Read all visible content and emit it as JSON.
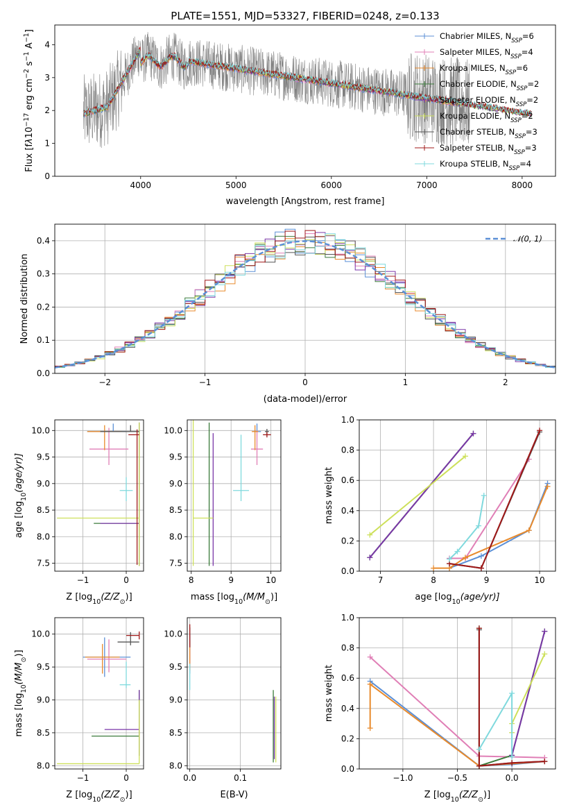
{
  "figure": {
    "title": "PLATE=1551, MJD=53327, FIBERID=0248, z=0.133"
  },
  "chart_data": [
    {
      "id": "spectrum",
      "type": "line",
      "xlabel": "wavelength [Angstrom, rest frame]",
      "ylabel_parts": [
        "Flux [f",
        "λ",
        "10",
        "−17",
        " erg cm",
        "−2",
        " s",
        "−1",
        " A",
        "−1",
        "]"
      ],
      "xlim": [
        3100,
        8350
      ],
      "ylim": [
        0,
        4.6
      ],
      "xticks": [
        4000,
        5000,
        6000,
        7000,
        8000
      ],
      "yticks": [
        0,
        1,
        2,
        3,
        4
      ],
      "grid": false,
      "legend": "top-right",
      "legend_entries": [
        {
          "base": "Chabrier MILES, N",
          "sub": "SSP",
          "tail": "=6",
          "color": "#5b8fd6"
        },
        {
          "base": "Salpeter MILES, N",
          "sub": "SSP",
          "tail": "=4",
          "color": "#e07fb6"
        },
        {
          "base": "Kroupa MILES, N",
          "sub": "SSP",
          "tail": "=6",
          "color": "#e88a2c"
        },
        {
          "base": "Chabrier ELODIE, N",
          "sub": "SSP",
          "tail": "=2",
          "color": "#3a7a3a"
        },
        {
          "base": "Salpeter ELODIE, N",
          "sub": "SSP",
          "tail": "=2",
          "color": "#7a36a8"
        },
        {
          "base": "Kroupa ELODIE, N",
          "sub": "SSP",
          "tail": "=2",
          "color": "#cde05a"
        },
        {
          "base": "Chabrier STELIB, N",
          "sub": "SSP",
          "tail": "=3",
          "color": "#555555"
        },
        {
          "base": "Salpeter STELIB, N",
          "sub": "SSP",
          "tail": "=3",
          "color": "#a01818"
        },
        {
          "base": "Kroupa STELIB, N",
          "sub": "SSP",
          "tail": "=4",
          "color": "#7fd9dd"
        }
      ],
      "data_series_color": "#808080"
    },
    {
      "id": "residuals",
      "type": "histogram",
      "xlabel": "(data-model)/error",
      "ylabel": "Normed distribution",
      "xlim": [
        -2.5,
        2.5
      ],
      "ylim": [
        0,
        0.45
      ],
      "xticks": [
        -2,
        -1,
        0,
        1,
        2
      ],
      "yticks": [
        0.0,
        0.1,
        0.2,
        0.3,
        0.4
      ],
      "grid": true,
      "legend": "top-right",
      "legend_label": "𝒩(0, 1)",
      "gauss_color": "#5b8fd6"
    },
    {
      "id": "age-vs-Z",
      "type": "errorbar",
      "xlabel_parts": [
        "Z [log",
        "10",
        "(Z/Z",
        "⊙",
        ")]"
      ],
      "ylabel_parts": [
        "age  [log",
        "10",
        "(age/yr)]"
      ],
      "xlim": [
        -1.65,
        0.4
      ],
      "ylim": [
        7.35,
        10.2
      ],
      "xticks": [
        -1,
        0
      ],
      "yticks": [
        7.5,
        8.0,
        8.5,
        9.0,
        9.5,
        10.0
      ],
      "grid": true,
      "points": [
        {
          "x": -0.3,
          "y": 9.98,
          "xerr": [
            0.6,
            0.3
          ],
          "yerr": [
            0.0,
            0.15
          ],
          "s": 0
        },
        {
          "x": -0.4,
          "y": 9.65,
          "xerr": [
            0.45,
            0.45
          ],
          "yerr": [
            0.3,
            0.4
          ],
          "s": 1
        },
        {
          "x": -0.5,
          "y": 9.98,
          "xerr": [
            0.4,
            0.4
          ],
          "yerr": [
            0.35,
            0.12
          ],
          "s": 2
        },
        {
          "x": 0.3,
          "y": 8.25,
          "xerr": [
            1.05,
            0.0
          ],
          "yerr": [
            0.8,
            1.9
          ],
          "s": 3
        },
        {
          "x": 0.3,
          "y": 8.25,
          "xerr": [
            0.9,
            0.0
          ],
          "yerr": [
            0.8,
            1.9
          ],
          "s": 4
        },
        {
          "x": 0.3,
          "y": 8.35,
          "xerr": [
            1.9,
            0.0
          ],
          "yerr": [
            0.9,
            1.8
          ],
          "s": 5
        },
        {
          "x": 0.1,
          "y": 9.98,
          "xerr": [
            0.7,
            0.2
          ],
          "yerr": [
            0.0,
            0.12
          ],
          "s": 6
        },
        {
          "x": 0.25,
          "y": 9.92,
          "xerr": [
            0.2,
            0.05
          ],
          "yerr": [
            2.45,
            0.1
          ],
          "s": 7
        },
        {
          "x": 0.0,
          "y": 8.87,
          "xerr": [
            0.15,
            0.15
          ],
          "yerr": [
            0.2,
            0.25
          ],
          "s": 8
        }
      ]
    },
    {
      "id": "age-vs-mass",
      "type": "errorbar",
      "xlabel_parts": [
        "mass [log",
        "10",
        "(M/M",
        "⊙",
        ")]"
      ],
      "ylabel": "",
      "xlim": [
        7.9,
        10.25
      ],
      "ylim": [
        7.35,
        10.2
      ],
      "xticks": [
        8,
        9,
        10
      ],
      "yticks": [
        7.5,
        8.0,
        8.5,
        9.0,
        9.5,
        10.0
      ],
      "grid": true,
      "points": [
        {
          "x": 9.65,
          "y": 9.98,
          "xerr": [
            0.1,
            0.1
          ],
          "yerr": [
            0.0,
            0.15
          ],
          "s": 0
        },
        {
          "x": 9.65,
          "y": 9.65,
          "xerr": [
            0.15,
            0.15
          ],
          "yerr": [
            0.3,
            0.35
          ],
          "s": 1
        },
        {
          "x": 9.6,
          "y": 9.98,
          "xerr": [
            0.08,
            0.08
          ],
          "yerr": [
            0.35,
            0.12
          ],
          "s": 2
        },
        {
          "x": 8.45,
          "y": 8.25,
          "xerr": [
            0.0,
            0.0
          ],
          "yerr": [
            0.8,
            1.9
          ],
          "s": 3
        },
        {
          "x": 8.55,
          "y": 8.25,
          "xerr": [
            0.0,
            0.0
          ],
          "yerr": [
            0.8,
            1.7
          ],
          "s": 4
        },
        {
          "x": 8.05,
          "y": 8.35,
          "xerr": [
            0.0,
            0.5
          ],
          "yerr": [
            0.9,
            1.85
          ],
          "s": 5
        },
        {
          "x": 9.9,
          "y": 9.98,
          "xerr": [
            0.05,
            0.05
          ],
          "yerr": [
            0.08,
            0.05
          ],
          "s": 6
        },
        {
          "x": 9.9,
          "y": 9.92,
          "xerr": [
            0.1,
            0.1
          ],
          "yerr": [
            0.05,
            0.05
          ],
          "s": 7
        },
        {
          "x": 9.25,
          "y": 8.87,
          "xerr": [
            0.2,
            0.2
          ],
          "yerr": [
            0.2,
            1.05
          ],
          "s": 8
        }
      ]
    },
    {
      "id": "mass-weight-vs-age",
      "type": "line",
      "xlabel_parts": [
        "age  [log",
        "10",
        "(age/yr)]"
      ],
      "ylabel": "mass weight",
      "xlim": [
        6.6,
        10.3
      ],
      "ylim": [
        0,
        1.0
      ],
      "xticks": [
        7,
        8,
        9,
        10
      ],
      "yticks": [
        0.0,
        0.2,
        0.4,
        0.6,
        0.8,
        1.0
      ],
      "grid": true,
      "series": [
        {
          "s": 0,
          "x": [
            8.3,
            8.9,
            9.8,
            10.15
          ],
          "y": [
            0.02,
            0.1,
            0.27,
            0.58
          ]
        },
        {
          "s": 1,
          "x": [
            8.3,
            8.6,
            9.8
          ],
          "y": [
            0.085,
            0.085,
            0.74
          ]
        },
        {
          "s": 2,
          "x": [
            8.0,
            8.3,
            8.6,
            9.8,
            10.15
          ],
          "y": [
            0.02,
            0.02,
            0.09,
            0.27,
            0.56
          ]
        },
        {
          "s": 3,
          "x": [
            6.8,
            8.75
          ],
          "y": [
            0.09,
            0.91
          ]
        },
        {
          "s": 4,
          "x": [
            6.8,
            8.75
          ],
          "y": [
            0.09,
            0.91
          ]
        },
        {
          "s": 5,
          "x": [
            6.8,
            8.6
          ],
          "y": [
            0.24,
            0.76
          ]
        },
        {
          "s": 6,
          "x": [
            8.3,
            8.9,
            10.0
          ],
          "y": [
            0.05,
            0.02,
            0.92
          ]
        },
        {
          "s": 7,
          "x": [
            8.3,
            8.9,
            10.0
          ],
          "y": [
            0.05,
            0.02,
            0.93
          ]
        },
        {
          "s": 8,
          "x": [
            8.3,
            8.45,
            8.85,
            8.95
          ],
          "y": [
            0.08,
            0.13,
            0.3,
            0.5
          ]
        }
      ]
    },
    {
      "id": "mass-vs-Z",
      "type": "errorbar",
      "xlabel_parts": [
        "Z [log",
        "10",
        "(Z/Z",
        "⊙",
        ")]"
      ],
      "ylabel_parts": [
        "mass [log",
        "10",
        "(M/M",
        "⊙",
        ")]"
      ],
      "xlim": [
        -1.65,
        0.4
      ],
      "ylim": [
        7.95,
        10.25
      ],
      "xticks": [
        -1,
        0
      ],
      "yticks": [
        8.0,
        8.5,
        9.0,
        9.5,
        10.0
      ],
      "grid": true,
      "points": [
        {
          "x": -0.5,
          "y": 9.65,
          "xerr": [
            0.5,
            0.6
          ],
          "yerr": [
            0.3,
            0.3
          ],
          "s": 0
        },
        {
          "x": -0.4,
          "y": 9.62,
          "xerr": [
            0.5,
            0.4
          ],
          "yerr": [
            0.2,
            0.3
          ],
          "s": 1
        },
        {
          "x": -0.55,
          "y": 9.65,
          "xerr": [
            0.4,
            0.4
          ],
          "yerr": [
            0.25,
            0.2
          ],
          "s": 2
        },
        {
          "x": 0.3,
          "y": 8.45,
          "xerr": [
            1.1,
            0.0
          ],
          "yerr": [
            0.3,
            0.7
          ],
          "s": 3
        },
        {
          "x": 0.3,
          "y": 8.55,
          "xerr": [
            0.8,
            0.0
          ],
          "yerr": [
            0.4,
            0.6
          ],
          "s": 4
        },
        {
          "x": 0.3,
          "y": 8.03,
          "xerr": [
            1.9,
            0.0
          ],
          "yerr": [
            0.0,
            0.97
          ],
          "s": 5
        },
        {
          "x": 0.1,
          "y": 9.88,
          "xerr": [
            0.3,
            0.2
          ],
          "yerr": [
            0.05,
            0.15
          ],
          "s": 6
        },
        {
          "x": 0.3,
          "y": 9.98,
          "xerr": [
            0.3,
            0.0
          ],
          "yerr": [
            0.06,
            0.06
          ],
          "s": 7
        },
        {
          "x": 0.0,
          "y": 9.23,
          "xerr": [
            0.15,
            0.1
          ],
          "yerr": [
            0.05,
            0.35
          ],
          "s": 8
        }
      ]
    },
    {
      "id": "mass-vs-ebv",
      "type": "errorbar",
      "xlabel": "E(B-V)",
      "ylabel": "",
      "xlim": [
        -0.005,
        0.18
      ],
      "ylim": [
        7.95,
        10.25
      ],
      "xticks": [
        0.0,
        0.1
      ],
      "yticks": [
        8.0,
        8.5,
        9.0,
        9.5,
        10.0
      ],
      "grid": true,
      "points": [
        {
          "x": 0.0,
          "y": 9.7,
          "xerr": [
            0,
            0
          ],
          "yerr": [
            0.3,
            0.3
          ],
          "s": 0
        },
        {
          "x": 0.0,
          "y": 9.7,
          "xerr": [
            0,
            0
          ],
          "yerr": [
            0.2,
            0.3
          ],
          "s": 1
        },
        {
          "x": 0.0,
          "y": 9.7,
          "xerr": [
            0,
            0
          ],
          "yerr": [
            0.25,
            0.2
          ],
          "s": 2
        },
        {
          "x": 0.165,
          "y": 8.55,
          "xerr": [
            0,
            0
          ],
          "yerr": [
            0.5,
            0.6
          ],
          "s": 3
        },
        {
          "x": 0.167,
          "y": 8.55,
          "xerr": [
            0,
            0
          ],
          "yerr": [
            0.45,
            0.5
          ],
          "s": 4
        },
        {
          "x": 0.17,
          "y": 8.55,
          "xerr": [
            0,
            0
          ],
          "yerr": [
            0.5,
            0.5
          ],
          "s": 5
        },
        {
          "x": 0.0,
          "y": 9.9,
          "xerr": [
            0,
            0
          ],
          "yerr": [
            0.1,
            0.2
          ],
          "s": 6
        },
        {
          "x": 0.0,
          "y": 9.95,
          "xerr": [
            0,
            0
          ],
          "yerr": [
            0.15,
            0.2
          ],
          "s": 7
        },
        {
          "x": 0.0,
          "y": 9.35,
          "xerr": [
            0,
            0
          ],
          "yerr": [
            0.2,
            0.2
          ],
          "s": 8
        }
      ]
    },
    {
      "id": "mass-weight-vs-Z",
      "type": "line",
      "xlabel_parts": [
        "Z [log",
        "10",
        "(Z/Z",
        "⊙",
        ")]"
      ],
      "ylabel": "mass weight",
      "xlim": [
        -1.4,
        0.4
      ],
      "ylim": [
        0,
        1.0
      ],
      "xticks": [
        -1.0,
        -0.5,
        0.0
      ],
      "yticks": [
        0.0,
        0.2,
        0.4,
        0.6,
        0.8,
        1.0
      ],
      "grid": true,
      "series": [
        {
          "s": 0,
          "x": [
            -1.3,
            -0.3,
            0.0,
            0.3
          ],
          "y": [
            0.58,
            0.02,
            0.03,
            0.05
          ]
        },
        {
          "s": 1,
          "x": [
            -1.3,
            -0.3,
            0.3
          ],
          "y": [
            0.74,
            0.085,
            0.075
          ]
        },
        {
          "s": 2,
          "x": [
            -1.3,
            -1.3,
            -0.3,
            0.3
          ],
          "y": [
            0.27,
            0.56,
            0.02,
            0.05
          ]
        },
        {
          "s": 3,
          "x": [
            -0.3,
            -0.3,
            0.0,
            0.3
          ],
          "y": [
            0.93,
            0.02,
            0.09,
            0.91
          ]
        },
        {
          "s": 4,
          "x": [
            0.0,
            0.3
          ],
          "y": [
            0.09,
            0.91
          ]
        },
        {
          "s": 5,
          "x": [
            0.0,
            0.0,
            0.3
          ],
          "y": [
            0.24,
            0.3,
            0.76
          ]
        },
        {
          "s": 6,
          "x": [
            -0.3,
            -0.3,
            0.0,
            0.3
          ],
          "y": [
            0.92,
            0.02,
            0.04,
            0.05
          ]
        },
        {
          "s": 7,
          "x": [
            -0.3,
            -0.3,
            0.0,
            0.3
          ],
          "y": [
            0.93,
            0.02,
            0.04,
            0.05
          ]
        },
        {
          "s": 8,
          "x": [
            -0.3,
            0.0,
            0.0
          ],
          "y": [
            0.13,
            0.5,
            0.08
          ]
        }
      ]
    }
  ]
}
